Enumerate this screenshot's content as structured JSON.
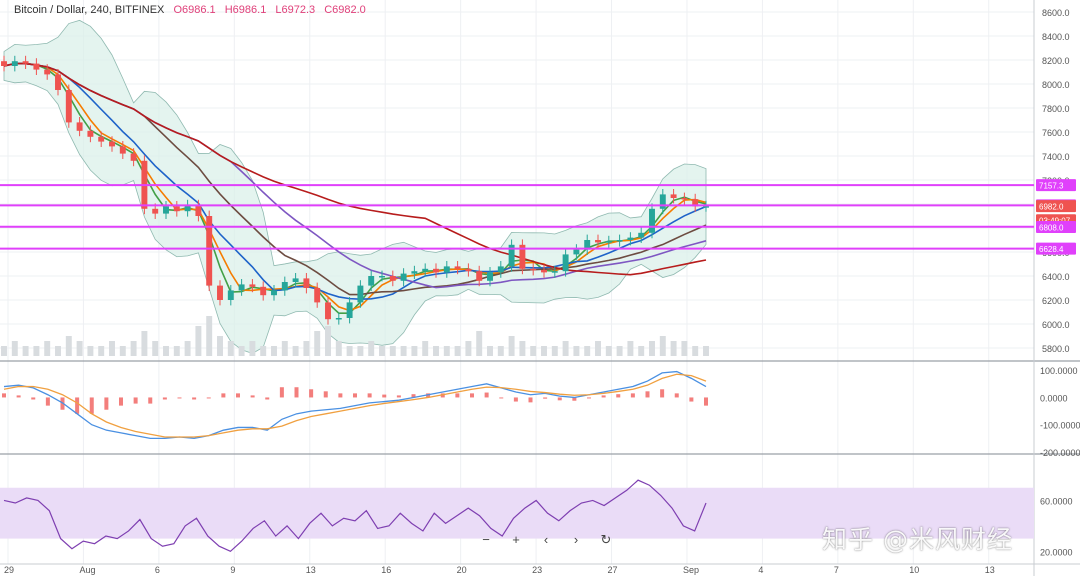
{
  "header": {
    "symbol": "Bitcoin / Dollar, 240, BITFINEX",
    "open": "O6986.1",
    "high": "H6986.1",
    "low": "L6972.3",
    "close": "C6982.0"
  },
  "controls": {
    "zoom_out": "−",
    "zoom_in": "+",
    "scroll_left": "‹",
    "scroll_right": "›",
    "reset": "↻"
  },
  "watermark": "知乎 @米风财经",
  "colors": {
    "up": "#26a69a",
    "down": "#ef5350",
    "level_line": "#e040fb",
    "ma_red": "#b71c1c",
    "ma_brown": "#6d4c41",
    "ma_purple": "#7e57c2",
    "ma_blue": "#1e63c9",
    "ma_orange": "#f57c00",
    "ma_green": "#43a047",
    "bb_fill": "#d9efe8",
    "rsi_band": "#eadcf7",
    "rsi_line": "#7e3fb1",
    "macd_line": "#4a90e2",
    "signal_line": "#f0a040",
    "hist": "#ef5350"
  },
  "chart_data": [
    {
      "type": "candlestick",
      "title": "Bitcoin / Dollar, 240, BITFINEX",
      "ylim": [
        5700,
        8700
      ],
      "y_ticks": [
        8600,
        8400,
        8200,
        8000,
        7800,
        7600,
        7400,
        7200,
        7000,
        6800,
        6600,
        6400,
        6200,
        6000,
        5800
      ],
      "x_tick_labels": [
        "29",
        "Aug",
        "6",
        "9",
        "13",
        "16",
        "20",
        "23",
        "27",
        "Sep",
        "4",
        "7",
        "10",
        "13"
      ],
      "price_levels": [
        {
          "label": "7157.3",
          "value": 7157.3
        },
        {
          "label": "6988.7",
          "value": 6988.7
        },
        {
          "label": "6982.0",
          "value": 6982.0
        },
        {
          "label": "03:49:07",
          "value": 6865
        },
        {
          "label": "6808.0",
          "value": 6808.0
        },
        {
          "label": "6628.4",
          "value": 6628.4
        }
      ],
      "horizontal_lines": [
        7157.3,
        6988.7,
        6810,
        6628.4
      ],
      "close_series": [
        8150,
        8190,
        8170,
        8120,
        8080,
        7950,
        7680,
        7610,
        7560,
        7520,
        7480,
        7420,
        7360,
        6960,
        6920,
        6980,
        6940,
        6990,
        6900,
        6320,
        6200,
        6280,
        6330,
        6310,
        6240,
        6280,
        6350,
        6380,
        6300,
        6180,
        6040,
        6050,
        6180,
        6320,
        6400,
        6400,
        6360,
        6420,
        6440,
        6460,
        6430,
        6480,
        6460,
        6440,
        6360,
        6430,
        6480,
        6660,
        6460,
        6450,
        6430,
        6440,
        6580,
        6620,
        6700,
        6680,
        6690,
        6700,
        6720,
        6760,
        6960,
        7080,
        7050,
        7040,
        6980,
        6982
      ],
      "volume_series": [
        2,
        3,
        2,
        2,
        3,
        2,
        4,
        3,
        2,
        2,
        3,
        2,
        3,
        5,
        3,
        2,
        2,
        3,
        6,
        8,
        4,
        3,
        2,
        3,
        2,
        2,
        3,
        2,
        3,
        5,
        6,
        3,
        2,
        2,
        3,
        2,
        2,
        2,
        2,
        3,
        2,
        2,
        2,
        3,
        5,
        2,
        2,
        4,
        3,
        2,
        2,
        2,
        3,
        2,
        2,
        3,
        2,
        2,
        3,
        2,
        3,
        4,
        3,
        3,
        2,
        2
      ]
    },
    {
      "type": "line",
      "title": "MACD",
      "ylim": [
        -200,
        130
      ],
      "y_ticks": [
        100,
        0,
        -100,
        -200
      ],
      "y_tick_labels": [
        "100.0000",
        "0.0000",
        "-100.0000",
        "-200.0000"
      ],
      "series": [
        {
          "values": [
            40,
            45,
            35,
            10,
            -20,
            -60,
            -100,
            -120,
            -130,
            -140,
            -150,
            -150,
            -145,
            -150,
            -140,
            -120,
            -110,
            -110,
            -120,
            -80,
            -60,
            -50,
            -45,
            -40,
            -30,
            -20,
            -15,
            -10,
            0,
            10,
            20,
            30,
            40,
            50,
            35,
            20,
            10,
            15,
            5,
            0,
            10,
            20,
            30,
            40,
            60,
            90,
            95,
            70,
            40
          ]
        },
        {
          "values": [
            30,
            40,
            40,
            30,
            10,
            -20,
            -60,
            -90,
            -110,
            -125,
            -135,
            -145,
            -145,
            -145,
            -140,
            -130,
            -120,
            -115,
            -115,
            -105,
            -85,
            -70,
            -60,
            -50,
            -40,
            -30,
            -22,
            -15,
            -8,
            0,
            10,
            20,
            30,
            38,
            36,
            30,
            22,
            18,
            12,
            8,
            10,
            15,
            22,
            30,
            45,
            70,
            85,
            80,
            60
          ]
        }
      ]
    },
    {
      "type": "line",
      "title": "RSI",
      "ylim": [
        10,
        95
      ],
      "y_ticks": [
        60,
        20
      ],
      "y_tick_labels": [
        "60.0000",
        "20.0000"
      ],
      "band": [
        30,
        70
      ],
      "series": [
        {
          "values": [
            60,
            58,
            62,
            60,
            52,
            30,
            22,
            28,
            26,
            32,
            30,
            36,
            45,
            30,
            24,
            26,
            40,
            46,
            32,
            24,
            20,
            28,
            38,
            44,
            32,
            40,
            30,
            42,
            50,
            40,
            46,
            44,
            52,
            38,
            40,
            50,
            42,
            36,
            50,
            42,
            48,
            54,
            48,
            38,
            32,
            46,
            54,
            60,
            50,
            44,
            52,
            58,
            60,
            56,
            62,
            68,
            76,
            72,
            64,
            54,
            40,
            36,
            58
          ]
        }
      ]
    }
  ]
}
